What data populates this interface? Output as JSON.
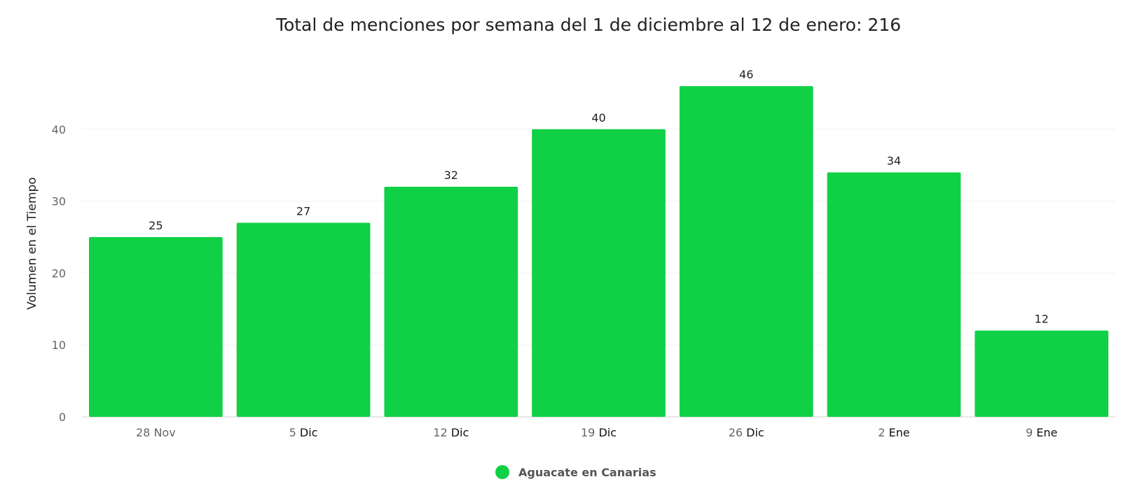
{
  "chart_data": {
    "type": "bar",
    "title": "Total de menciones por semana del 1 de diciembre al 12 de enero: 216",
    "ylabel": "Volumen en el Tiempo",
    "xlabel": "",
    "categories": [
      "28 Nov",
      "5 Dic",
      "12 Dic",
      "19 Dic",
      "26 Dic",
      "2 Ene",
      "9 Ene"
    ],
    "category_parts": [
      {
        "day": "28",
        "month": "Nov"
      },
      {
        "day": "5",
        "month": "Dic"
      },
      {
        "day": "12",
        "month": "Dic"
      },
      {
        "day": "19",
        "month": "Dic"
      },
      {
        "day": "26",
        "month": "Dic"
      },
      {
        "day": "2",
        "month": "Ene"
      },
      {
        "day": "9",
        "month": "Ene"
      }
    ],
    "series": [
      {
        "name": "Aguacate en Canarias",
        "color": "#10d045",
        "values": [
          25,
          27,
          32,
          40,
          46,
          34,
          12
        ]
      }
    ],
    "data_labels": [
      "25",
      "27",
      "32",
      "40",
      "46",
      "34",
      "12"
    ],
    "ylim": [
      0,
      50
    ],
    "yticks": [
      0,
      10,
      20,
      30,
      40
    ],
    "ytick_labels": [
      "0",
      "10",
      "20",
      "30",
      "40"
    ],
    "grid": true,
    "legend_position": "bottom-center"
  }
}
